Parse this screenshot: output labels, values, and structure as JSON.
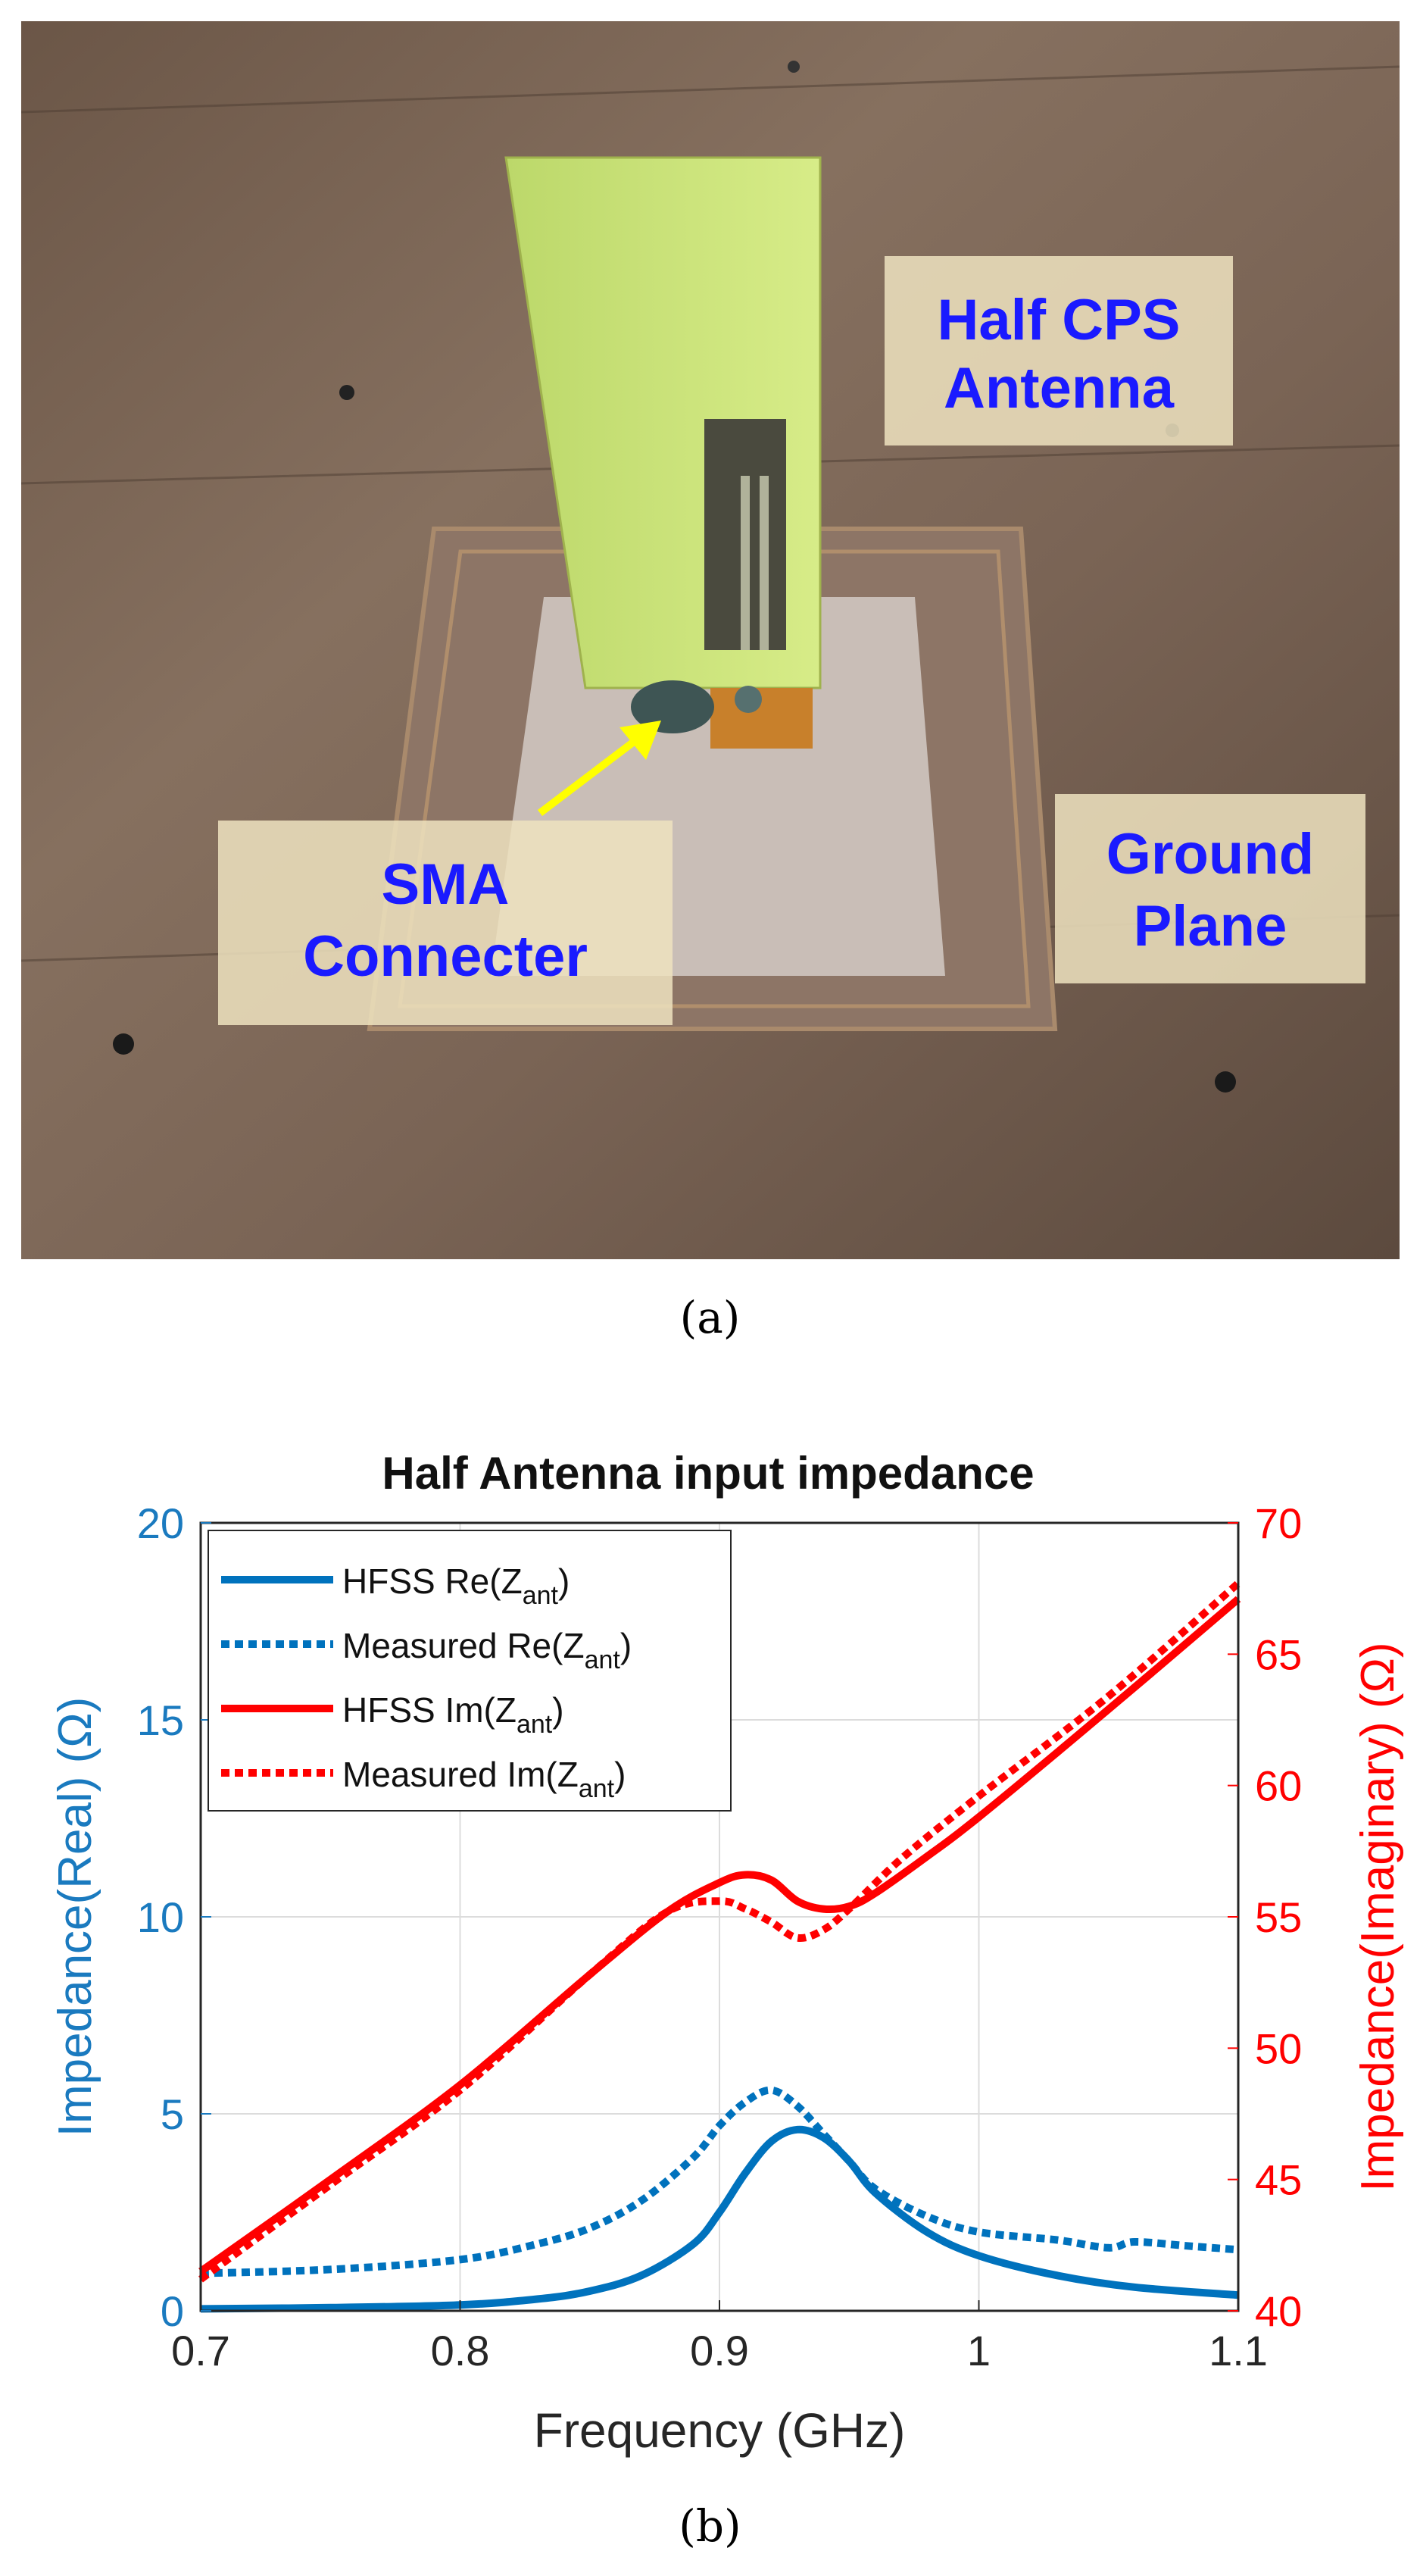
{
  "photo": {
    "labels": {
      "antenna": [
        "Half CPS",
        "Antenna"
      ],
      "connector": [
        "SMA",
        "Connecter"
      ],
      "ground": [
        "Ground",
        "Plane"
      ]
    },
    "caption": "(a)",
    "colors": {
      "label_text": "#1a1aff",
      "label_box": "#efe3bf",
      "arrow": "#ffff00"
    }
  },
  "chart_caption": "(b)",
  "chart_data": {
    "type": "line",
    "title": "Half Antenna input impedance",
    "xlabel": "Frequency (GHz)",
    "ylabel_left": "Impedance(Real) (Ω)",
    "ylabel_right": "Impedance(Imaginary) (Ω)",
    "xlim": [
      0.7,
      1.1
    ],
    "ylim_left": [
      0,
      20
    ],
    "ylim_right": [
      40,
      70
    ],
    "xticks": [
      "0.7",
      "0.8",
      "0.9",
      "1",
      "1.1"
    ],
    "yticks_left": [
      "0",
      "5",
      "10",
      "15",
      "20"
    ],
    "yticks_right": [
      "40",
      "45",
      "50",
      "55",
      "60",
      "65",
      "70"
    ],
    "grid": true,
    "legend_position": "top-left",
    "colors": {
      "left_axis": "#1a7abf",
      "right_axis": "#ff0000",
      "blue": "#0072bd",
      "red": "#ff0000"
    },
    "series": [
      {
        "name": "HFSS Re(Zant)",
        "legend": [
          "HFSS Re(Z",
          "ant",
          ")"
        ],
        "axis": "left",
        "style": "solid",
        "color": "#0072bd",
        "x": [
          0.7,
          0.75,
          0.8,
          0.83,
          0.85,
          0.87,
          0.89,
          0.9,
          0.91,
          0.92,
          0.93,
          0.94,
          0.95,
          0.96,
          0.98,
          1.0,
          1.03,
          1.06,
          1.1
        ],
        "y": [
          0.05,
          0.08,
          0.15,
          0.3,
          0.5,
          0.9,
          1.7,
          2.5,
          3.5,
          4.3,
          4.6,
          4.4,
          3.8,
          3.0,
          2.0,
          1.4,
          0.9,
          0.6,
          0.4
        ]
      },
      {
        "name": "Measured Re(Zant)",
        "legend": [
          "Measured  Re(Z",
          "ant",
          ")"
        ],
        "axis": "left",
        "style": "dotted",
        "color": "#0072bd",
        "x": [
          0.7,
          0.75,
          0.8,
          0.83,
          0.85,
          0.87,
          0.89,
          0.9,
          0.91,
          0.92,
          0.93,
          0.94,
          0.95,
          0.96,
          0.98,
          1.0,
          1.03,
          1.05,
          1.06,
          1.08,
          1.1
        ],
        "y": [
          0.95,
          1.05,
          1.3,
          1.7,
          2.1,
          2.8,
          3.9,
          4.7,
          5.3,
          5.6,
          5.2,
          4.5,
          3.8,
          3.1,
          2.4,
          2.0,
          1.8,
          1.6,
          1.75,
          1.65,
          1.55
        ]
      },
      {
        "name": "HFSS Im(Zant)",
        "legend": [
          "HFSS Im(Z",
          "ant",
          ")"
        ],
        "axis": "right",
        "style": "solid",
        "color": "#ff0000",
        "x": [
          0.7,
          0.75,
          0.8,
          0.85,
          0.88,
          0.9,
          0.91,
          0.92,
          0.93,
          0.94,
          0.95,
          0.96,
          0.98,
          1.0,
          1.05,
          1.1
        ],
        "y": [
          41.5,
          45.0,
          48.6,
          52.8,
          55.2,
          56.3,
          56.6,
          56.4,
          55.6,
          55.3,
          55.4,
          55.9,
          57.3,
          58.8,
          62.9,
          67.1
        ]
      },
      {
        "name": "Measured Im(Zant)",
        "legend": [
          "Measured Im(Z",
          "ant",
          ")"
        ],
        "axis": "right",
        "style": "dotted",
        "color": "#ff0000",
        "x": [
          0.7,
          0.75,
          0.8,
          0.85,
          0.88,
          0.9,
          0.91,
          0.92,
          0.93,
          0.94,
          0.95,
          0.97,
          1.0,
          1.05,
          1.1
        ],
        "y": [
          41.2,
          44.8,
          48.4,
          52.8,
          55.2,
          55.6,
          55.3,
          54.8,
          54.2,
          54.5,
          55.3,
          57.2,
          59.6,
          63.4,
          67.7
        ]
      }
    ]
  }
}
